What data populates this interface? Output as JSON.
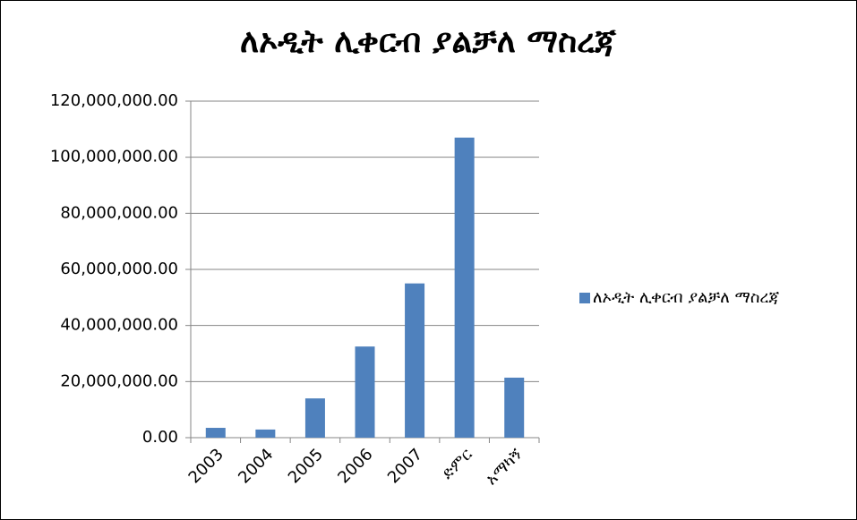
{
  "chart_data": {
    "type": "bar",
    "title": "ለኦዲት ሊቀርብ ያልቻለ ማስረጃ",
    "categories": [
      "2003",
      "2004",
      "2005",
      "2006",
      "2007",
      "ድምር",
      "አማካኝ"
    ],
    "series": [
      {
        "name": "ለኦዲት ሊቀርብ ያልቻለ ማስረጃ",
        "color": "#4f81bd",
        "values": [
          3500000,
          2900000,
          14000000,
          32500000,
          55000000,
          107000000,
          21400000
        ]
      }
    ],
    "ylim": [
      0,
      120000000
    ],
    "yticks": [
      {
        "value": 0,
        "label": "0.00"
      },
      {
        "value": 20000000,
        "label": "20,000,000.00"
      },
      {
        "value": 40000000,
        "label": "40,000,000.00"
      },
      {
        "value": 60000000,
        "label": "60,000,000.00"
      },
      {
        "value": 80000000,
        "label": "80,000,000.00"
      },
      {
        "value": 100000000,
        "label": "100,000,000.00"
      },
      {
        "value": 120000000,
        "label": "120,000,000.00"
      }
    ],
    "grid": true,
    "legend": "right"
  }
}
